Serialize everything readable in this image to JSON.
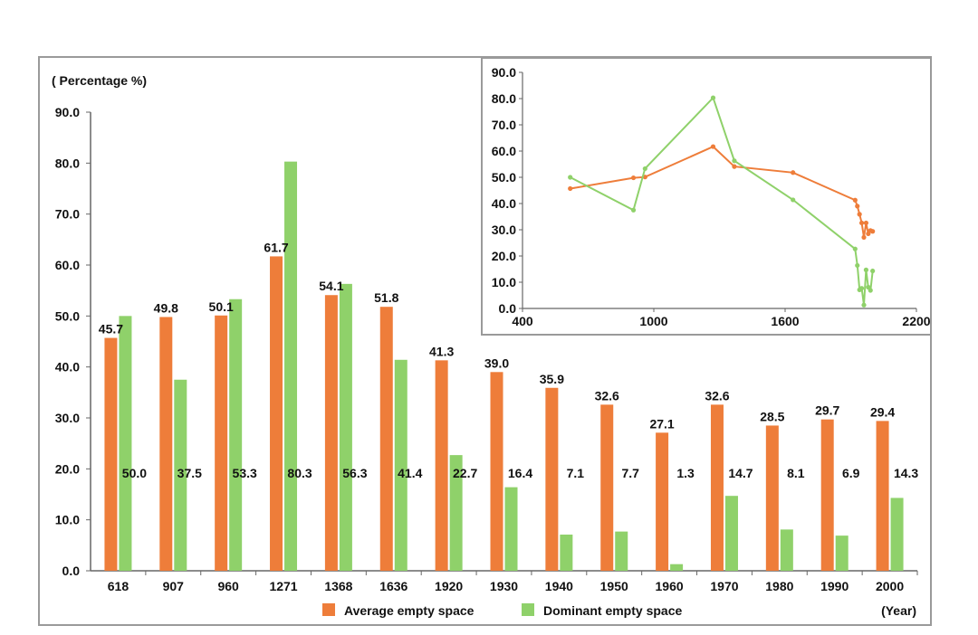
{
  "chart_data": [
    {
      "type": "bar",
      "ylabel": "( Percentage %)",
      "xlabel": "(Year)",
      "ylim": [
        0,
        90
      ],
      "yticks": [
        "0.0",
        "10.0",
        "20.0",
        "30.0",
        "40.0",
        "50.0",
        "60.0",
        "70.0",
        "80.0",
        "90.0"
      ],
      "categories": [
        "618",
        "907",
        "960",
        "1271",
        "1368",
        "1636",
        "1920",
        "1930",
        "1940",
        "1950",
        "1960",
        "1970",
        "1980",
        "1990",
        "2000"
      ],
      "series": [
        {
          "name": "Average empty space",
          "color": "#ee7d3a",
          "values": [
            45.7,
            49.8,
            50.1,
            61.7,
            54.1,
            51.8,
            41.3,
            39.0,
            35.9,
            32.6,
            27.1,
            32.6,
            28.5,
            29.7,
            29.4
          ],
          "labels": [
            "45.7",
            "49.8",
            "50.1",
            "61.7",
            "54.1",
            "51.8",
            "41.3",
            "39.0",
            "35.9",
            "32.6",
            "27.1",
            "32.6",
            "28.5",
            "29.7",
            "29.4"
          ]
        },
        {
          "name": "Dominant empty space",
          "color": "#8fd16a",
          "values": [
            50.0,
            37.5,
            53.3,
            80.3,
            56.3,
            41.4,
            22.7,
            16.4,
            7.1,
            7.7,
            1.3,
            14.7,
            8.1,
            6.9,
            14.3
          ],
          "labels": [
            "50.0",
            "37.5",
            "53.3",
            "80.3",
            "56.3",
            "41.4",
            "22.7",
            "16.4",
            "7.1",
            "7.7",
            "1.3",
            "14.7",
            "8.1",
            "6.9",
            "14.3"
          ]
        }
      ],
      "legend": "bottom"
    },
    {
      "type": "line",
      "xlim": [
        400,
        2200
      ],
      "ylim": [
        0,
        90
      ],
      "xticks": [
        "400",
        "1000",
        "1600",
        "2200"
      ],
      "yticks": [
        "0.0",
        "10.0",
        "20.0",
        "30.0",
        "40.0",
        "50.0",
        "60.0",
        "70.0",
        "80.0",
        "90.0"
      ],
      "x": [
        618,
        907,
        960,
        1271,
        1368,
        1636,
        1920,
        1930,
        1940,
        1950,
        1960,
        1970,
        1980,
        1990,
        2000
      ],
      "series": [
        {
          "color": "#ee7d3a",
          "values": [
            45.7,
            49.8,
            50.1,
            61.7,
            54.1,
            51.8,
            41.3,
            39.0,
            35.9,
            32.6,
            27.1,
            32.6,
            28.5,
            29.7,
            29.4
          ]
        },
        {
          "color": "#8fd16a",
          "values": [
            50.0,
            37.5,
            53.3,
            80.3,
            56.3,
            41.4,
            22.7,
            16.4,
            7.1,
            7.7,
            1.3,
            14.7,
            8.1,
            6.9,
            14.3
          ]
        }
      ]
    }
  ]
}
